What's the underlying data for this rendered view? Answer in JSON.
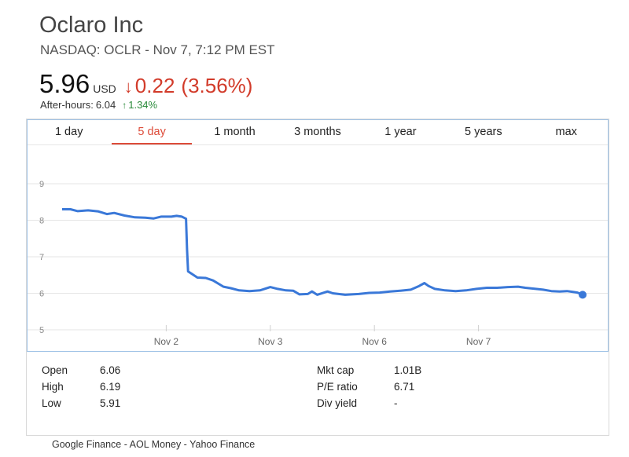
{
  "company": "Oclaro Inc",
  "subtitle": "NASDAQ: OCLR - Nov 7, 7:12 PM EST",
  "price": "5.96",
  "currency": "USD",
  "change": "0.22",
  "change_pct": "(3.56%)",
  "after_hours_label": "After-hours:",
  "after_hours_value": "6.04",
  "after_hours_change": "1.34%",
  "tabs": [
    {
      "label": "1 day",
      "active": false
    },
    {
      "label": "5 day",
      "active": true
    },
    {
      "label": "1 month",
      "active": false
    },
    {
      "label": "3 months",
      "active": false
    },
    {
      "label": "1 year",
      "active": false
    },
    {
      "label": "5 years",
      "active": false
    },
    {
      "label": "max",
      "active": false
    }
  ],
  "chart_data": {
    "type": "line",
    "title": "",
    "xlabel": "",
    "ylabel": "",
    "ylim": [
      4.9,
      9.2
    ],
    "y_ticks": [
      5,
      6,
      7,
      8,
      9
    ],
    "x_tick_labels": [
      "Nov 2",
      "Nov 3",
      "Nov 6",
      "Nov 7"
    ],
    "x_tick_positions": [
      1,
      2,
      3,
      4
    ],
    "x_range": [
      0.0,
      5.0
    ],
    "grid": true,
    "line_color": "#3a78d8",
    "series": [
      {
        "values": [
          [
            0.0,
            8.3
          ],
          [
            0.08,
            8.3
          ],
          [
            0.15,
            8.25
          ],
          [
            0.25,
            8.27
          ],
          [
            0.35,
            8.24
          ],
          [
            0.43,
            8.17
          ],
          [
            0.5,
            8.2
          ],
          [
            0.6,
            8.13
          ],
          [
            0.7,
            8.08
          ],
          [
            0.8,
            8.07
          ],
          [
            0.88,
            8.05
          ],
          [
            0.95,
            8.1
          ],
          [
            1.05,
            8.1
          ],
          [
            1.1,
            8.12
          ],
          [
            1.15,
            8.1
          ],
          [
            1.19,
            8.04
          ],
          [
            1.2,
            7.2
          ],
          [
            1.21,
            6.6
          ],
          [
            1.3,
            6.43
          ],
          [
            1.38,
            6.42
          ],
          [
            1.45,
            6.35
          ],
          [
            1.55,
            6.18
          ],
          [
            1.62,
            6.14
          ],
          [
            1.7,
            6.08
          ],
          [
            1.8,
            6.06
          ],
          [
            1.9,
            6.08
          ],
          [
            2.0,
            6.17
          ],
          [
            2.07,
            6.12
          ],
          [
            2.15,
            6.08
          ],
          [
            2.22,
            6.07
          ],
          [
            2.28,
            5.97
          ],
          [
            2.36,
            5.98
          ],
          [
            2.4,
            6.05
          ],
          [
            2.45,
            5.96
          ],
          [
            2.55,
            6.05
          ],
          [
            2.6,
            6.0
          ],
          [
            2.72,
            5.96
          ],
          [
            2.85,
            5.98
          ],
          [
            2.95,
            6.01
          ],
          [
            3.05,
            6.02
          ],
          [
            3.15,
            6.05
          ],
          [
            3.25,
            6.07
          ],
          [
            3.35,
            6.1
          ],
          [
            3.43,
            6.2
          ],
          [
            3.48,
            6.28
          ],
          [
            3.52,
            6.2
          ],
          [
            3.58,
            6.12
          ],
          [
            3.68,
            6.08
          ],
          [
            3.78,
            6.06
          ],
          [
            3.88,
            6.08
          ],
          [
            3.98,
            6.12
          ],
          [
            4.08,
            6.15
          ],
          [
            4.18,
            6.15
          ],
          [
            4.28,
            6.17
          ],
          [
            4.38,
            6.18
          ],
          [
            4.45,
            6.15
          ],
          [
            4.55,
            6.12
          ],
          [
            4.62,
            6.1
          ],
          [
            4.7,
            6.06
          ],
          [
            4.78,
            6.05
          ],
          [
            4.85,
            6.06
          ],
          [
            4.9,
            6.04
          ],
          [
            4.95,
            6.02
          ],
          [
            5.0,
            5.96
          ]
        ]
      }
    ]
  },
  "stats_left": [
    {
      "label": "Open",
      "value": "6.06"
    },
    {
      "label": "High",
      "value": "6.19"
    },
    {
      "label": "Low",
      "value": "5.91"
    }
  ],
  "stats_right": [
    {
      "label": "Mkt cap",
      "value": "1.01B"
    },
    {
      "label": "P/E ratio",
      "value": "6.71"
    },
    {
      "label": "Div yield",
      "value": "-"
    }
  ],
  "footer": "Google Finance - AOL Money - Yahoo Finance"
}
